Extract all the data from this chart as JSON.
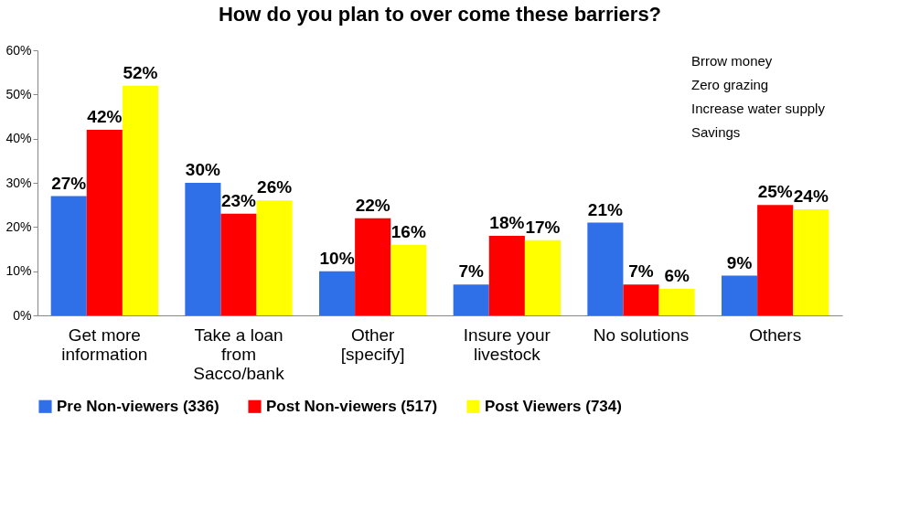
{
  "chart_data": {
    "type": "bar",
    "title": "How do you plan to over come these barriers?",
    "categories": [
      "Get more information",
      "Take a loan from Sacco/bank",
      "Other [specify]",
      "Insure your livestock",
      "No solutions",
      "Others"
    ],
    "series": [
      {
        "name": "Pre Non-viewers (336)",
        "color": "#2f6fe8",
        "values": [
          27,
          30,
          10,
          7,
          21,
          9
        ],
        "value_labels": [
          "27%",
          "30%",
          "10%",
          "7%",
          "21%",
          "9%"
        ]
      },
      {
        "name": "Post Non-viewers (517)",
        "color": "#ff0000",
        "values": [
          42,
          23,
          22,
          18,
          7,
          25
        ],
        "value_labels": [
          "42%",
          "23%",
          "22%",
          "18%",
          "7%",
          "25%"
        ]
      },
      {
        "name": "Post Viewers (734)",
        "color": "#ffff00",
        "values": [
          52,
          26,
          16,
          17,
          6,
          24
        ],
        "value_labels": [
          "52%",
          "26%",
          "16%",
          "17%",
          "6%",
          "24%"
        ]
      }
    ],
    "ylim": [
      0,
      60
    ],
    "yticks": [
      {
        "value": 0,
        "label": "0%"
      },
      {
        "value": 10,
        "label": "10%"
      },
      {
        "value": 20,
        "label": "20%"
      },
      {
        "value": 30,
        "label": "30%"
      },
      {
        "value": 40,
        "label": "40%"
      },
      {
        "value": 50,
        "label": "50%"
      },
      {
        "value": 60,
        "label": "60%"
      }
    ],
    "annotations": [
      "Brrow money",
      "Zero grazing",
      "Increase water supply",
      "Savings"
    ],
    "grid": false,
    "legend": "bottom"
  }
}
